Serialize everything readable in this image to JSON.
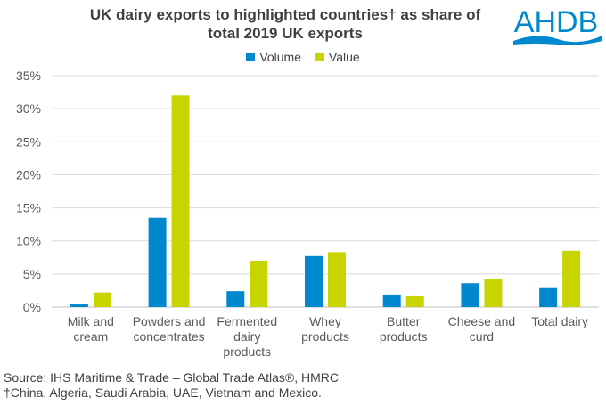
{
  "logo_text": "AHDB",
  "chart_data": {
    "type": "bar",
    "title": "UK dairy exports to highlighted countries† as share of total 2019 UK exports",
    "title_lines": [
      "UK dairy exports to highlighted countries† as share of",
      "total 2019 UK exports"
    ],
    "categories": [
      [
        "Milk and",
        "cream"
      ],
      [
        "Powders and",
        "concentrates"
      ],
      [
        "Fermented",
        "dairy",
        "products"
      ],
      [
        "Whey",
        "products"
      ],
      [
        "Butter",
        "products"
      ],
      [
        "Cheese and",
        "curd"
      ],
      [
        "Total dairy"
      ]
    ],
    "series": [
      {
        "name": "Volume",
        "color": "#0088CE",
        "values": [
          0.4,
          13.5,
          2.4,
          7.7,
          1.9,
          3.6,
          3.0
        ]
      },
      {
        "name": "Value",
        "color": "#C8D400",
        "values": [
          2.2,
          32.0,
          7.0,
          8.3,
          1.75,
          4.2,
          8.5
        ]
      }
    ],
    "ylim": [
      0,
      35
    ],
    "yticks": [
      "0%",
      "5%",
      "10%",
      "15%",
      "20%",
      "25%",
      "30%",
      "35%"
    ],
    "legend_position": "top",
    "grid": true
  },
  "source": "Source: IHS Maritime & Trade – Global Trade Atlas®,  HMRC",
  "footnote": "†China, Algeria, Saudi Arabia, UAE, Vietnam and Mexico."
}
